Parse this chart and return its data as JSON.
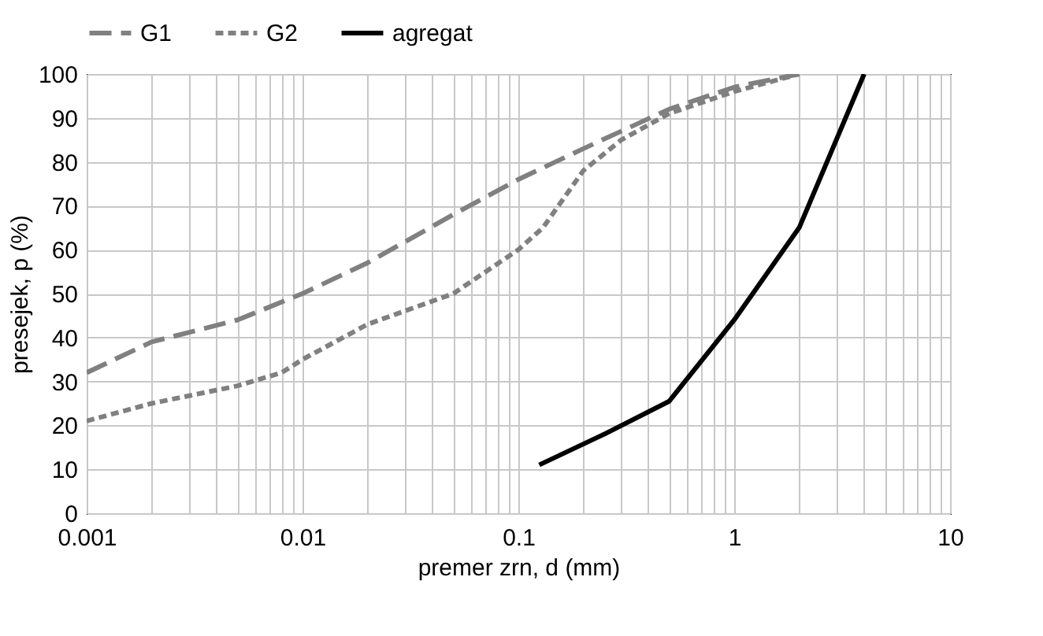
{
  "chart_data": {
    "type": "line",
    "xlabel": "premer zrn, d (mm)",
    "ylabel": "presejek, p (%)",
    "log": "x",
    "grid": true,
    "legend": "top",
    "xlim": [
      0.001,
      10
    ],
    "ylim": [
      0,
      100
    ],
    "xticks": [
      0.001,
      {
        "value": 0.002,
        "label": null
      },
      {
        "value": 0.003,
        "label": null
      },
      {
        "value": 0.004,
        "label": null
      },
      {
        "value": 0.005,
        "label": null
      },
      {
        "value": 0.006,
        "label": null
      },
      {
        "value": 0.007,
        "label": null
      },
      {
        "value": 0.008,
        "label": null
      },
      {
        "value": 0.009,
        "label": null
      },
      0.01,
      {
        "value": 0.02,
        "label": null
      },
      {
        "value": 0.03,
        "label": null
      },
      {
        "value": 0.04,
        "label": null
      },
      {
        "value": 0.05,
        "label": null
      },
      {
        "value": 0.06,
        "label": null
      },
      {
        "value": 0.07,
        "label": null
      },
      {
        "value": 0.08,
        "label": null
      },
      {
        "value": 0.09,
        "label": null
      },
      0.1,
      {
        "value": 0.2,
        "label": null
      },
      {
        "value": 0.3,
        "label": null
      },
      {
        "value": 0.4,
        "label": null
      },
      {
        "value": 0.5,
        "label": null
      },
      {
        "value": 0.6,
        "label": null
      },
      {
        "value": 0.7,
        "label": null
      },
      {
        "value": 0.8,
        "label": null
      },
      {
        "value": 0.9,
        "label": null
      },
      1,
      {
        "value": 2,
        "label": null
      },
      {
        "value": 3,
        "label": null
      },
      {
        "value": 4,
        "label": null
      },
      {
        "value": 5,
        "label": null
      },
      {
        "value": 6,
        "label": null
      },
      {
        "value": 7,
        "label": null
      },
      {
        "value": 8,
        "label": null
      },
      {
        "value": 9,
        "label": null
      },
      10
    ],
    "yticks": [
      0,
      10,
      20,
      30,
      40,
      50,
      60,
      70,
      80,
      90,
      100
    ],
    "series": [
      {
        "name": "G1",
        "color": "#808080",
        "line_style": "dashed",
        "x": [
          0.001,
          0.002,
          0.005,
          0.01,
          0.02,
          0.05,
          0.1,
          0.2,
          0.5,
          1,
          2
        ],
        "values": [
          32,
          39,
          44,
          50,
          57,
          68,
          76,
          83,
          92,
          97,
          100
        ]
      },
      {
        "name": "G2",
        "color": "#808080",
        "line_style": "dotted",
        "x": [
          0.001,
          0.002,
          0.005,
          0.008,
          0.01,
          0.02,
          0.05,
          0.1,
          0.13,
          0.2,
          0.3,
          0.5,
          1,
          2
        ],
        "values": [
          21,
          25,
          29,
          32,
          35,
          43,
          50,
          60,
          65,
          78,
          85,
          91,
          96,
          100
        ]
      },
      {
        "name": "agregat",
        "color": "#000000",
        "line_style": "solid",
        "x": [
          0.125,
          0.25,
          0.5,
          1,
          2,
          4
        ],
        "values": [
          11,
          18,
          25.5,
          44,
          65,
          100
        ]
      }
    ]
  }
}
